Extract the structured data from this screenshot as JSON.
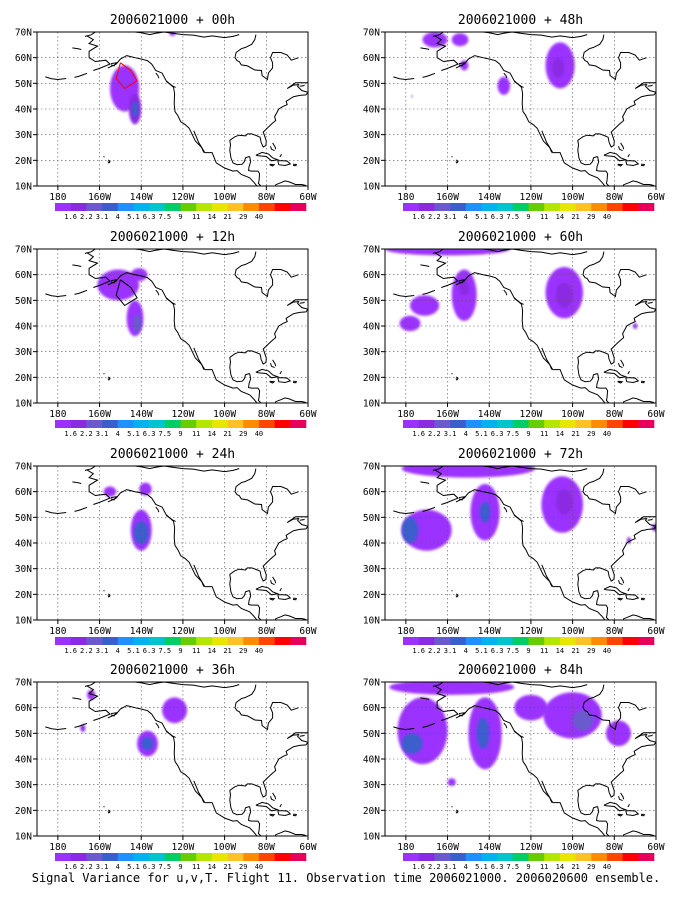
{
  "caption": "Signal Variance for u,v,T. Flight 11. Observation time 2006021000. 2006020600 ensemble.",
  "colors": {
    "palette": [
      "#9b30ff",
      "#8a2be2",
      "#6a5acd",
      "#3a5fcd",
      "#1e90ff",
      "#00b2ee",
      "#00c5cd",
      "#00cd66",
      "#66cd00",
      "#b3e600",
      "#e6e600",
      "#ffc125",
      "#ff8c00",
      "#ff4500",
      "#ff0000",
      "#e6005c"
    ],
    "land_outline": "#000000",
    "grid": "#555555",
    "storm_track": "#ff0000"
  },
  "colorbar_labels": [
    "1.6",
    "2.2",
    "3.1",
    "4",
    "5.1",
    "6.3",
    "7.5",
    "9",
    "11",
    "14",
    "21",
    "29",
    "40"
  ],
  "lat_labels": [
    "70N",
    "60N",
    "50N",
    "40N",
    "30N",
    "20N",
    "10N"
  ],
  "lon_labels": [
    "180",
    "160W",
    "140W",
    "120W",
    "100W",
    "80W",
    "60W"
  ],
  "panels": [
    {
      "title": "2006021000 + 00h",
      "blobs": [
        {
          "lon": -148,
          "lat": 48,
          "rx": 7,
          "ry": 9,
          "level": 0
        },
        {
          "lon": -143,
          "lat": 40,
          "rx": 3,
          "ry": 6,
          "level": 1
        },
        {
          "lon": -143,
          "lat": 40,
          "rx": 1.5,
          "ry": 3,
          "level": 3
        },
        {
          "lon": -125,
          "lat": 69.5,
          "rx": 1.5,
          "ry": 1,
          "level": 0
        }
      ],
      "track": true
    },
    {
      "title": "2006021000 + 48h",
      "blobs": [
        {
          "lon": -166,
          "lat": 67,
          "rx": 6,
          "ry": 3,
          "level": 0
        },
        {
          "lon": -154,
          "lat": 67,
          "rx": 4,
          "ry": 2.5,
          "level": 0
        },
        {
          "lon": -152,
          "lat": 57,
          "rx": 2,
          "ry": 2,
          "level": 0
        },
        {
          "lon": -133,
          "lat": 49,
          "rx": 3,
          "ry": 3.5,
          "level": 0
        },
        {
          "lon": -106,
          "lat": 57,
          "rx": 7,
          "ry": 9,
          "level": 0
        },
        {
          "lon": -107,
          "lat": 56,
          "rx": 3,
          "ry": 4,
          "level": 1
        },
        {
          "lon": -177,
          "lat": 45,
          "rx": 0.4,
          "ry": 0.5,
          "level": 1
        }
      ]
    },
    {
      "title": "2006021000 + 12h",
      "blobs": [
        {
          "lon": -151,
          "lat": 56,
          "rx": 10,
          "ry": 6,
          "level": 0
        },
        {
          "lon": -143,
          "lat": 43,
          "rx": 4,
          "ry": 7,
          "level": 0
        },
        {
          "lon": -142,
          "lat": 41,
          "rx": 2,
          "ry": 3.5,
          "level": 2
        },
        {
          "lon": -141,
          "lat": 60,
          "rx": 4,
          "ry": 2.5,
          "level": 0
        }
      ],
      "track": true
    },
    {
      "title": "2006021000 + 60h",
      "blobs": [
        {
          "lon": -160,
          "lat": 70,
          "rx": 30,
          "ry": 2.5,
          "level": 0
        },
        {
          "lon": -171,
          "lat": 48,
          "rx": 7,
          "ry": 4,
          "level": 0
        },
        {
          "lon": -178,
          "lat": 41,
          "rx": 5,
          "ry": 3,
          "level": 0
        },
        {
          "lon": -152,
          "lat": 52,
          "rx": 6,
          "ry": 10,
          "level": 0
        },
        {
          "lon": -152,
          "lat": 55,
          "rx": 2.5,
          "ry": 3,
          "level": 1
        },
        {
          "lon": -104,
          "lat": 53,
          "rx": 9,
          "ry": 10,
          "level": 0
        },
        {
          "lon": -104,
          "lat": 52,
          "rx": 4,
          "ry": 5,
          "level": 1
        },
        {
          "lon": -70,
          "lat": 40,
          "rx": 1,
          "ry": 1.2,
          "level": 1
        }
      ]
    },
    {
      "title": "2006021000 + 24h",
      "blobs": [
        {
          "lon": -155,
          "lat": 60,
          "rx": 3,
          "ry": 2,
          "level": 0
        },
        {
          "lon": -140,
          "lat": 45,
          "rx": 5,
          "ry": 8,
          "level": 0
        },
        {
          "lon": -140,
          "lat": 44,
          "rx": 3.5,
          "ry": 4.5,
          "level": 3
        },
        {
          "lon": -138,
          "lat": 61,
          "rx": 3,
          "ry": 2.5,
          "level": 0
        }
      ]
    },
    {
      "title": "2006021000 + 72h",
      "blobs": [
        {
          "lon": -150,
          "lat": 69,
          "rx": 32,
          "ry": 3.5,
          "level": 0
        },
        {
          "lon": -170,
          "lat": 45,
          "rx": 12,
          "ry": 8,
          "level": 0
        },
        {
          "lon": -178,
          "lat": 45,
          "rx": 4,
          "ry": 5,
          "level": 3
        },
        {
          "lon": -142,
          "lat": 52,
          "rx": 7,
          "ry": 11,
          "level": 0
        },
        {
          "lon": -142,
          "lat": 52,
          "rx": 2.5,
          "ry": 4,
          "level": 3
        },
        {
          "lon": -105,
          "lat": 55,
          "rx": 10,
          "ry": 11,
          "level": 0
        },
        {
          "lon": -104,
          "lat": 56,
          "rx": 4,
          "ry": 5,
          "level": 1
        },
        {
          "lon": -60,
          "lat": 46,
          "rx": 2,
          "ry": 1.5,
          "level": 1
        },
        {
          "lon": -73,
          "lat": 41,
          "rx": 1,
          "ry": 1.3,
          "level": 1
        }
      ]
    },
    {
      "title": "2006021000 + 36h",
      "blobs": [
        {
          "lon": -164,
          "lat": 65,
          "rx": 2,
          "ry": 2,
          "level": 0
        },
        {
          "lon": -168,
          "lat": 52,
          "rx": 1.2,
          "ry": 1.5,
          "level": 1
        },
        {
          "lon": -137,
          "lat": 46,
          "rx": 5,
          "ry": 5,
          "level": 0
        },
        {
          "lon": -137,
          "lat": 46,
          "rx": 3,
          "ry": 2.5,
          "level": 3
        },
        {
          "lon": -124,
          "lat": 59,
          "rx": 6,
          "ry": 5,
          "level": 0
        }
      ]
    },
    {
      "title": "2006021000 + 84h",
      "blobs": [
        {
          "lon": -158,
          "lat": 68,
          "rx": 30,
          "ry": 3,
          "level": 0
        },
        {
          "lon": -172,
          "lat": 51,
          "rx": 12,
          "ry": 13,
          "level": 0
        },
        {
          "lon": -177,
          "lat": 46,
          "rx": 5,
          "ry": 4,
          "level": 3
        },
        {
          "lon": -142,
          "lat": 50,
          "rx": 8,
          "ry": 14,
          "level": 0
        },
        {
          "lon": -143,
          "lat": 50,
          "rx": 3,
          "ry": 6,
          "level": 3
        },
        {
          "lon": -120,
          "lat": 60,
          "rx": 8,
          "ry": 5,
          "level": 0
        },
        {
          "lon": -100,
          "lat": 57,
          "rx": 14,
          "ry": 9,
          "level": 0
        },
        {
          "lon": -95,
          "lat": 55,
          "rx": 5,
          "ry": 4,
          "level": 2
        },
        {
          "lon": -78,
          "lat": 50,
          "rx": 6,
          "ry": 5,
          "level": 0
        },
        {
          "lon": -158,
          "lat": 31,
          "rx": 2,
          "ry": 1.5,
          "level": 0
        }
      ]
    }
  ]
}
